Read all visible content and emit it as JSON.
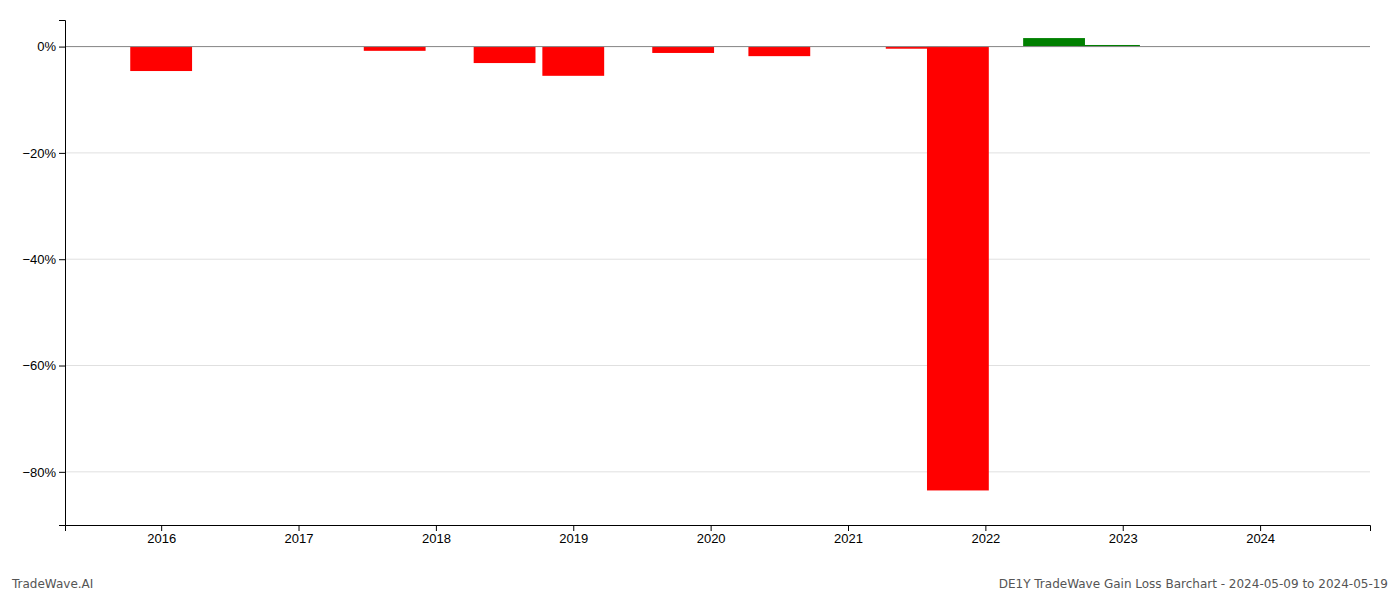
{
  "chart_data": {
    "type": "bar",
    "x": [
      2016.0,
      2017.7,
      2018.5,
      2019.0,
      2019.8,
      2020.5,
      2021.5,
      2021.8,
      2022.5,
      2022.9
    ],
    "values": [
      -0.046,
      -0.008,
      -0.031,
      -0.055,
      -0.012,
      -0.018,
      -0.004,
      -0.835,
      0.016,
      0.003
    ],
    "colors": [
      "#ff0000",
      "#ff0000",
      "#ff0000",
      "#ff0000",
      "#ff0000",
      "#ff0000",
      "#ff0000",
      "#ff0000",
      "#008000",
      "#008000"
    ],
    "xlim": [
      2015.3,
      2024.8
    ],
    "xticks": [
      2016,
      2017,
      2018,
      2019,
      2020,
      2021,
      2022,
      2023,
      2024
    ],
    "ylim": [
      -0.9,
      0.05
    ],
    "yticks": [
      {
        "value": 0.0,
        "label": "0%"
      },
      {
        "value": -0.2,
        "label": "−20%"
      },
      {
        "value": -0.4,
        "label": "−40%"
      },
      {
        "value": -0.6,
        "label": "−60%"
      },
      {
        "value": -0.8,
        "label": "−80%"
      }
    ],
    "grid": true,
    "annotations": [
      "TradeWave.AI",
      "DE1Y TradeWave Gain Loss Barchart - 2024-05-09 to 2024-05-19"
    ]
  }
}
